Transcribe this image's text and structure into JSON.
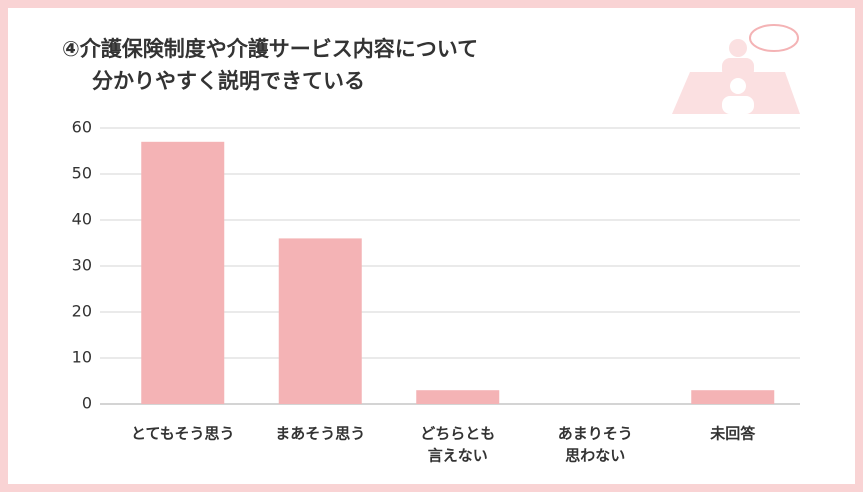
{
  "chart_data": {
    "type": "bar",
    "title": [
      "④介護保険制度や介護サービス内容について",
      "分かりやすく説明できている"
    ],
    "categories": [
      [
        "とてもそう思う"
      ],
      [
        "まあそう思う"
      ],
      [
        "どちらとも",
        "言えない"
      ],
      [
        "あまりそう",
        "思わない"
      ],
      [
        "未回答"
      ]
    ],
    "values": [
      57,
      36,
      3,
      0,
      3
    ],
    "color": "#f4b3b5",
    "ylim": [
      0,
      60
    ],
    "yticks": [
      0,
      10,
      20,
      30,
      40,
      50,
      60
    ],
    "grid": true
  }
}
